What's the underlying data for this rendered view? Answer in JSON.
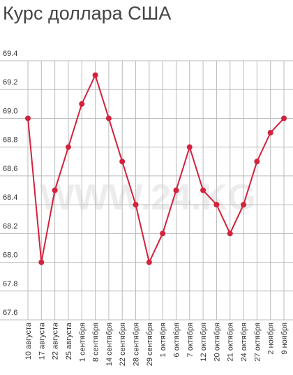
{
  "chart_data": {
    "type": "line",
    "title": "Курс доллара США",
    "watermark": "WWW.24.KG",
    "categories": [
      "10 августа",
      "17 августа",
      "22 августа",
      "25 августа",
      "1 сентября",
      "8 сентября",
      "14 сентября",
      "22 сентября",
      "28 сентября",
      "29 сентября",
      "1 октября",
      "6 октября",
      "7 октября",
      "12 октября",
      "20 октября",
      "21 октября",
      "24 октября",
      "27 октября",
      "2 ноября",
      "9 ноября"
    ],
    "values": [
      69.0,
      68.0,
      68.5,
      68.8,
      69.1,
      69.3,
      69.0,
      68.7,
      68.4,
      68.0,
      68.2,
      68.5,
      68.8,
      68.5,
      68.4,
      68.2,
      68.4,
      68.7,
      68.9,
      69.0
    ],
    "color": "#d3223c",
    "ylim": [
      67.6,
      69.4
    ],
    "yticks": [
      67.6,
      67.8,
      {
        "value": 68,
        "label": "68.0"
      },
      68.2,
      68.4,
      68.6,
      68.8,
      {
        "value": 69,
        "label": "69.0"
      },
      69.2,
      69.4
    ],
    "grid": true
  }
}
